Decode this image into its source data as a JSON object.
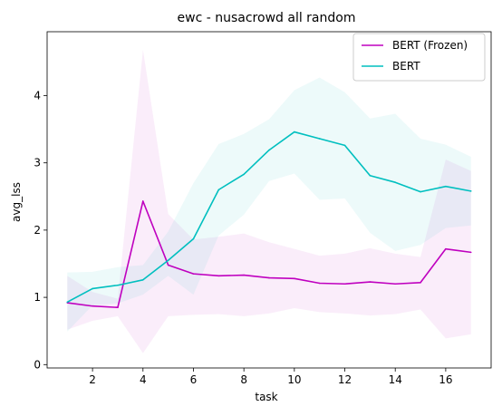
{
  "chart_data": {
    "type": "line",
    "title": "ewc - nusacrowd all random",
    "xlabel": "task",
    "ylabel": "avg_lss",
    "xlim": [
      0.2,
      17.8
    ],
    "ylim": [
      -0.05,
      4.95
    ],
    "xticks": [
      2,
      4,
      6,
      8,
      10,
      12,
      14,
      16
    ],
    "yticks": [
      0,
      1,
      2,
      3,
      4
    ],
    "grid": false,
    "legend_position": "top-right",
    "x": [
      1,
      2,
      3,
      4,
      5,
      6,
      7,
      8,
      9,
      10,
      11,
      12,
      13,
      14,
      15,
      16,
      17
    ],
    "series": [
      {
        "name": "BERT (Frozen)",
        "color": "#bf00bf",
        "values": [
          0.92,
          0.87,
          0.85,
          2.43,
          1.48,
          1.35,
          1.32,
          1.33,
          1.29,
          1.28,
          1.21,
          1.2,
          1.23,
          1.2,
          1.22,
          1.72,
          1.67
        ],
        "upper": [
          1.32,
          1.08,
          0.98,
          4.68,
          2.24,
          1.86,
          1.9,
          1.95,
          1.82,
          1.72,
          1.62,
          1.65,
          1.73,
          1.65,
          1.6,
          3.05,
          2.88
        ],
        "lower": [
          0.52,
          0.65,
          0.72,
          0.17,
          0.72,
          0.74,
          0.75,
          0.72,
          0.76,
          0.84,
          0.78,
          0.76,
          0.73,
          0.75,
          0.82,
          0.39,
          0.45
        ]
      },
      {
        "name": "BERT",
        "color": "#00bfbf",
        "values": [
          0.93,
          1.13,
          1.18,
          1.26,
          1.55,
          1.87,
          2.6,
          2.83,
          3.19,
          3.46,
          3.36,
          3.26,
          2.81,
          2.71,
          2.57,
          2.65,
          2.58
        ],
        "upper": [
          1.37,
          1.38,
          1.45,
          1.48,
          1.98,
          2.7,
          3.28,
          3.43,
          3.65,
          4.08,
          4.27,
          4.05,
          3.66,
          3.73,
          3.36,
          3.27,
          3.09
        ],
        "lower": [
          0.49,
          0.88,
          0.91,
          1.04,
          1.32,
          1.04,
          1.92,
          2.23,
          2.73,
          2.84,
          2.45,
          2.47,
          1.96,
          1.69,
          1.78,
          2.03,
          2.07
        ]
      }
    ]
  }
}
